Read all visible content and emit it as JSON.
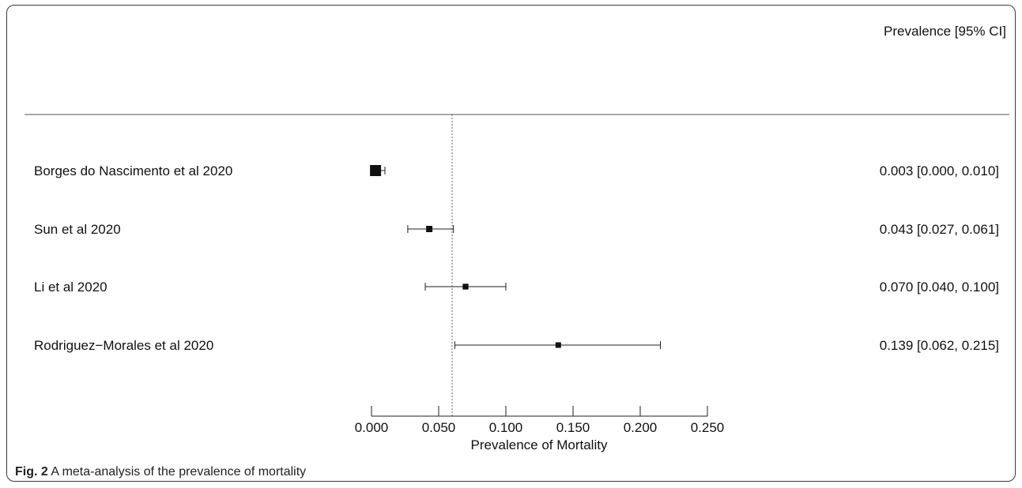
{
  "chart_data": {
    "type": "forest",
    "column_header": "Prevalence [95% CI]",
    "xlabel": "Prevalence of Mortality",
    "xlim": [
      0.0,
      0.25
    ],
    "x_ticks": [
      "0.000",
      "0.050",
      "0.100",
      "0.150",
      "0.200",
      "0.250"
    ],
    "x_tick_values": [
      0.0,
      0.05,
      0.1,
      0.15,
      0.2,
      0.25
    ],
    "pooled_estimate_line": 0.06,
    "studies": [
      {
        "label": "Borges do Nascimento et al 2020",
        "estimate": 0.003,
        "ci_low": 0.0,
        "ci_high": 0.01,
        "text": "0.003 [0.000, 0.010]",
        "relative_weight": 1.0
      },
      {
        "label": "Sun et al 2020",
        "estimate": 0.043,
        "ci_low": 0.027,
        "ci_high": 0.061,
        "text": "0.043 [0.027, 0.061]",
        "relative_weight": 0.4
      },
      {
        "label": "Li et al 2020",
        "estimate": 0.07,
        "ci_low": 0.04,
        "ci_high": 0.1,
        "text": "0.070 [0.040, 0.100]",
        "relative_weight": 0.33
      },
      {
        "label": "Rodriguez−Morales et al 2020",
        "estimate": 0.139,
        "ci_low": 0.062,
        "ci_high": 0.215,
        "text": "0.139 [0.062, 0.215]",
        "relative_weight": 0.3
      }
    ]
  },
  "caption": {
    "label": "Fig. 2",
    "text": " A meta-analysis of the prevalence of mortality"
  }
}
